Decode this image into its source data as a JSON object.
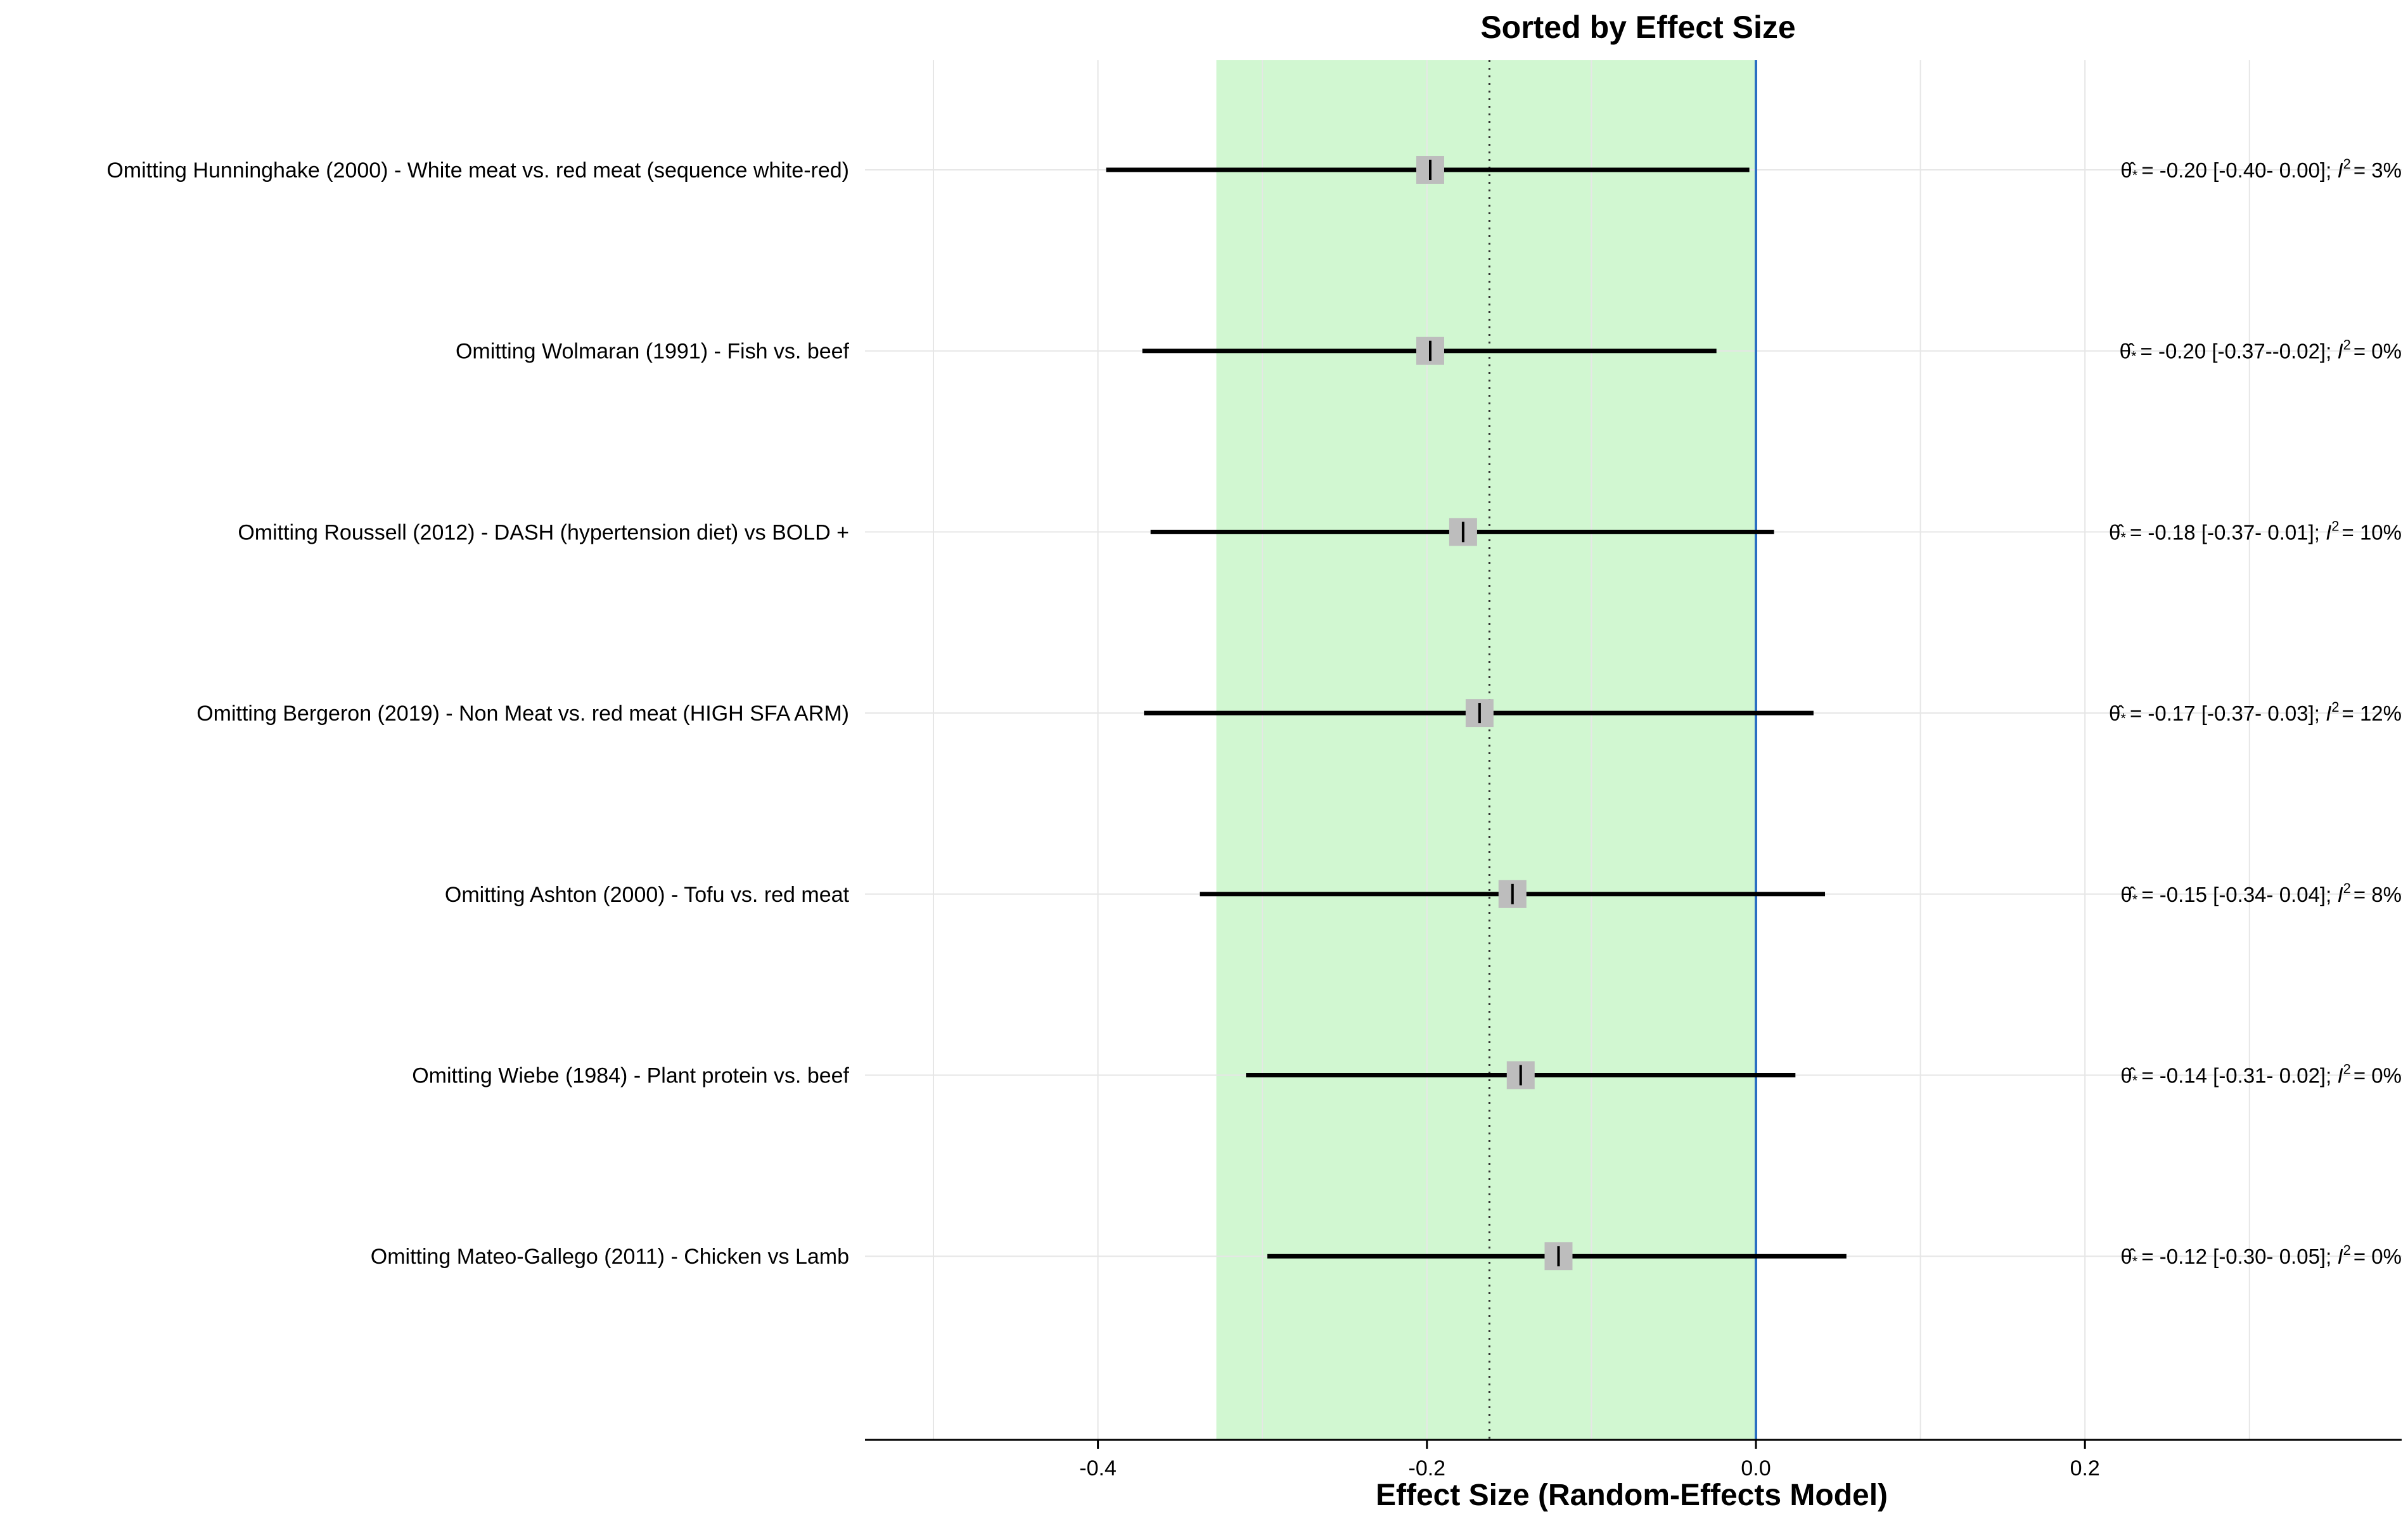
{
  "chart_data": {
    "type": "forest",
    "title": "Sorted by Effect Size",
    "xlabel": "Effect Size (Random-Effects Model)",
    "xlim": [
      -0.54,
      0.39
    ],
    "xticks": [
      -0.4,
      -0.2,
      0.0,
      0.2
    ],
    "xtick_labels": [
      "-0.4",
      "-0.2",
      "0.0",
      "0.2"
    ],
    "pooled_estimate": -0.162,
    "pooled_ci_band": [
      -0.328,
      0.0
    ],
    "reference_line": 0.0,
    "grid": true,
    "colors": {
      "band": "#d1f7d1",
      "reference": "#2a6fc2",
      "point_box": "#bdbdbd",
      "ci_line": "#000000",
      "grid": "#e6e6e6"
    },
    "studies": [
      {
        "label": "Omitting Hunninghake (2000) - White meat vs. red meat (sequence white-red)",
        "estimate": -0.198,
        "lower": -0.395,
        "upper": -0.004,
        "stat_label": "= -0.20 [-0.40- 0.00]; ",
        "i2": "=  3%"
      },
      {
        "label": "Omitting Wolmaran (1991) - Fish vs. beef",
        "estimate": -0.198,
        "lower": -0.373,
        "upper": -0.024,
        "stat_label": "= -0.20 [-0.37--0.02]; ",
        "i2": "=  0%"
      },
      {
        "label": "Omitting Roussell (2012) - DASH (hypertension diet) vs BOLD +",
        "estimate": -0.178,
        "lower": -0.368,
        "upper": 0.011,
        "stat_label": "= -0.18 [-0.37- 0.01]; ",
        "i2": "= 10%"
      },
      {
        "label": "Omitting Bergeron (2019) - Non Meat vs. red meat   (HIGH SFA ARM)",
        "estimate": -0.168,
        "lower": -0.372,
        "upper": 0.035,
        "stat_label": "= -0.17 [-0.37- 0.03]; ",
        "i2": "= 12%"
      },
      {
        "label": "Omitting Ashton (2000) - Tofu vs. red meat",
        "estimate": -0.148,
        "lower": -0.338,
        "upper": 0.042,
        "stat_label": "= -0.15 [-0.34- 0.04]; ",
        "i2": "=  8%"
      },
      {
        "label": "Omitting Wiebe (1984) - Plant protein vs. beef",
        "estimate": -0.143,
        "lower": -0.31,
        "upper": 0.024,
        "stat_label": "= -0.14 [-0.31- 0.02]; ",
        "i2": "=  0%"
      },
      {
        "label": "Omitting Mateo-Gallego (2011) - Chicken vs Lamb",
        "estimate": -0.12,
        "lower": -0.297,
        "upper": 0.055,
        "stat_label": "= -0.12 [-0.30- 0.05]; ",
        "i2": "=  0%"
      }
    ]
  }
}
